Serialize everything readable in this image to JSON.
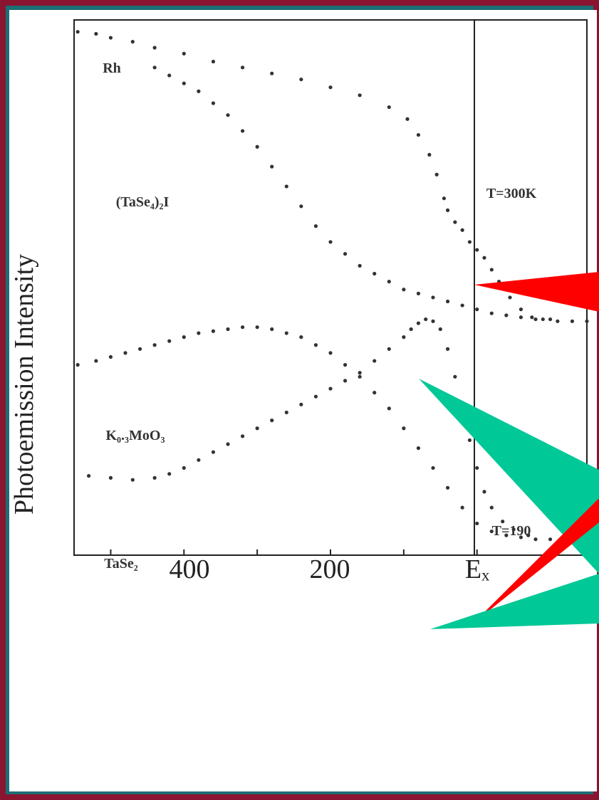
{
  "chart_data": {
    "type": "scatter",
    "ylabel": "Photoemission Intensity",
    "x_ticks": [
      "400",
      "200",
      "Eₓ"
    ],
    "xlim": [
      550,
      -150
    ],
    "series": [
      {
        "name": "Rh",
        "points": [
          [
            545,
            0.97
          ],
          [
            520,
            0.965
          ],
          [
            500,
            0.955
          ],
          [
            470,
            0.945
          ],
          [
            440,
            0.93
          ],
          [
            400,
            0.915
          ],
          [
            360,
            0.895
          ],
          [
            320,
            0.88
          ],
          [
            280,
            0.865
          ],
          [
            240,
            0.85
          ],
          [
            200,
            0.83
          ],
          [
            160,
            0.81
          ],
          [
            120,
            0.78
          ],
          [
            95,
            0.75
          ],
          [
            80,
            0.71
          ],
          [
            65,
            0.66
          ],
          [
            55,
            0.61
          ],
          [
            45,
            0.55
          ],
          [
            40,
            0.52
          ],
          [
            30,
            0.49
          ],
          [
            20,
            0.47
          ],
          [
            10,
            0.44
          ],
          [
            0,
            0.42
          ],
          [
            -10,
            0.4
          ],
          [
            -20,
            0.37
          ],
          [
            -30,
            0.34
          ],
          [
            -45,
            0.3
          ],
          [
            -60,
            0.27
          ],
          [
            -75,
            0.25
          ],
          [
            -90,
            0.245
          ],
          [
            -110,
            0.24
          ],
          [
            -130,
            0.24
          ],
          [
            -150,
            0.24
          ]
        ]
      },
      {
        "name": "(TaSe₄)₂I",
        "points": [
          [
            440,
            0.88
          ],
          [
            420,
            0.86
          ],
          [
            400,
            0.84
          ],
          [
            380,
            0.82
          ],
          [
            360,
            0.79
          ],
          [
            340,
            0.76
          ],
          [
            320,
            0.72
          ],
          [
            300,
            0.68
          ],
          [
            280,
            0.63
          ],
          [
            260,
            0.58
          ],
          [
            240,
            0.53
          ],
          [
            220,
            0.48
          ],
          [
            200,
            0.44
          ],
          [
            180,
            0.41
          ],
          [
            160,
            0.38
          ],
          [
            140,
            0.36
          ],
          [
            120,
            0.34
          ],
          [
            100,
            0.32
          ],
          [
            80,
            0.31
          ],
          [
            60,
            0.3
          ],
          [
            40,
            0.29
          ],
          [
            20,
            0.28
          ],
          [
            0,
            0.27
          ],
          [
            -20,
            0.26
          ],
          [
            -40,
            0.255
          ],
          [
            -60,
            0.25
          ],
          [
            -80,
            0.245
          ],
          [
            -100,
            0.245
          ]
        ]
      },
      {
        "name": "K₀.₃MoO₃",
        "points": [
          [
            545,
            0.13
          ],
          [
            520,
            0.14
          ],
          [
            500,
            0.15
          ],
          [
            480,
            0.16
          ],
          [
            460,
            0.17
          ],
          [
            440,
            0.18
          ],
          [
            420,
            0.19
          ],
          [
            400,
            0.2
          ],
          [
            380,
            0.21
          ],
          [
            360,
            0.215
          ],
          [
            340,
            0.22
          ],
          [
            320,
            0.225
          ],
          [
            300,
            0.225
          ],
          [
            280,
            0.22
          ],
          [
            260,
            0.21
          ],
          [
            240,
            0.2
          ],
          [
            220,
            0.18
          ],
          [
            200,
            0.16
          ],
          [
            180,
            0.13
          ],
          [
            160,
            0.1
          ],
          [
            140,
            0.06
          ],
          [
            120,
            0.02
          ],
          [
            100,
            -0.03
          ],
          [
            80,
            -0.08
          ],
          [
            60,
            -0.13
          ],
          [
            40,
            -0.18
          ],
          [
            20,
            -0.23
          ],
          [
            0,
            -0.27
          ],
          [
            -20,
            -0.29
          ],
          [
            -40,
            -0.3
          ],
          [
            -60,
            -0.305
          ],
          [
            -80,
            -0.31
          ]
        ]
      },
      {
        "name": "TaSe₂",
        "points": [
          [
            530,
            -0.15
          ],
          [
            500,
            -0.155
          ],
          [
            470,
            -0.16
          ],
          [
            440,
            -0.155
          ],
          [
            420,
            -0.145
          ],
          [
            400,
            -0.13
          ],
          [
            380,
            -0.11
          ],
          [
            360,
            -0.09
          ],
          [
            340,
            -0.07
          ],
          [
            320,
            -0.05
          ],
          [
            300,
            -0.03
          ],
          [
            280,
            -0.01
          ],
          [
            260,
            0.01
          ],
          [
            240,
            0.03
          ],
          [
            220,
            0.05
          ],
          [
            200,
            0.07
          ],
          [
            180,
            0.09
          ],
          [
            160,
            0.11
          ],
          [
            140,
            0.14
          ],
          [
            120,
            0.17
          ],
          [
            100,
            0.2
          ],
          [
            90,
            0.22
          ],
          [
            80,
            0.235
          ],
          [
            70,
            0.245
          ],
          [
            60,
            0.24
          ],
          [
            50,
            0.22
          ],
          [
            40,
            0.17
          ],
          [
            30,
            0.1
          ],
          [
            20,
            0.02
          ],
          [
            10,
            -0.06
          ],
          [
            0,
            -0.13
          ],
          [
            -10,
            -0.19
          ],
          [
            -20,
            -0.23
          ],
          [
            -35,
            -0.265
          ],
          [
            -50,
            -0.285
          ],
          [
            -70,
            -0.3
          ],
          [
            -100,
            -0.31
          ]
        ]
      }
    ],
    "annotations": [
      "T=300K",
      "T=190"
    ]
  }
}
